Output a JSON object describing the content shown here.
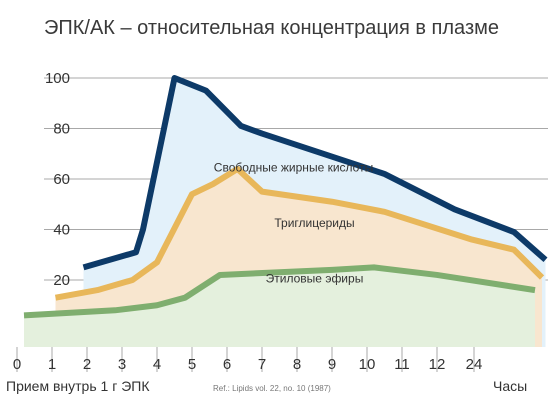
{
  "chart_data": {
    "type": "area",
    "title": "ЭПК/АК – относительная концентрация в плазме",
    "ylim": [
      0,
      100
    ],
    "y_ticks": [
      {
        "value": 20,
        "label": "20"
      },
      {
        "value": 40,
        "label": "40"
      },
      {
        "value": 60,
        "label": "60"
      },
      {
        "value": 80,
        "label": "80"
      },
      {
        "value": 100,
        "label": "100"
      }
    ],
    "grid": "horizontal",
    "x_ticks": [
      "0",
      "1",
      "2",
      "3",
      "4",
      "5",
      "6",
      "7",
      "8",
      "9",
      "10",
      "11",
      "12",
      "24"
    ],
    "xlim": [
      0,
      15
    ],
    "xlabel": "Часы",
    "footer_label": "Прием внутрь 1 г ЭПК",
    "reference": "Ref.: Lipids vol. 22, no. 10 (1987)",
    "series": [
      {
        "name": "Свободные жирные кислоты",
        "color": "#0d3a68",
        "fill": "#e3f1fa",
        "label_at": [
          7.9,
          63
        ],
        "points": [
          [
            1.9,
            25
          ],
          [
            3.4,
            31
          ],
          [
            3.6,
            40
          ],
          [
            4.5,
            100
          ],
          [
            5.4,
            95
          ],
          [
            6.4,
            81
          ],
          [
            7.0,
            78
          ],
          [
            10.5,
            62
          ],
          [
            12.5,
            48
          ],
          [
            14.2,
            39
          ],
          [
            15.1,
            28
          ]
        ]
      },
      {
        "name": "Триглицериды",
        "color": "#e8b75a",
        "fill": "#f8e6cf",
        "label_at": [
          8.5,
          41
        ],
        "points": [
          [
            1.1,
            13
          ],
          [
            2.3,
            16
          ],
          [
            3.3,
            20
          ],
          [
            4.0,
            27
          ],
          [
            5.0,
            54
          ],
          [
            5.6,
            58
          ],
          [
            6.3,
            64
          ],
          [
            7.0,
            55
          ],
          [
            9.0,
            51
          ],
          [
            10.5,
            47
          ],
          [
            13.0,
            36
          ],
          [
            14.2,
            32
          ],
          [
            15.0,
            21
          ]
        ]
      },
      {
        "name": "Этиловые эфиры",
        "color": "#7fae6f",
        "fill": "#e4f0dd",
        "label_at": [
          8.5,
          19
        ],
        "points": [
          [
            0.2,
            6
          ],
          [
            2.8,
            8
          ],
          [
            4.0,
            10
          ],
          [
            4.8,
            13
          ],
          [
            5.8,
            22
          ],
          [
            9.0,
            24
          ],
          [
            10.2,
            25
          ],
          [
            12.0,
            22
          ],
          [
            14.8,
            16
          ]
        ]
      }
    ]
  }
}
